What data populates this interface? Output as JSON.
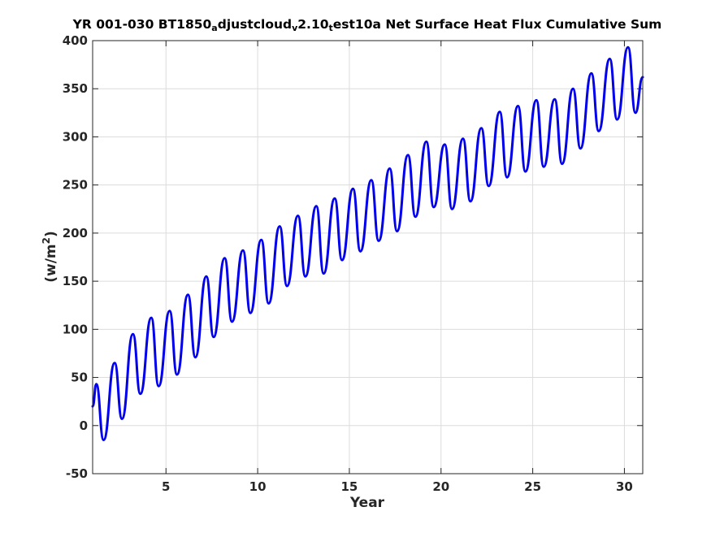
{
  "chart_data": {
    "type": "line",
    "title": {
      "parts": [
        {
          "text": "YR 001-030 BT1850",
          "sub": false
        },
        {
          "text": "a",
          "sub": true
        },
        {
          "text": "djustcloud",
          "sub": false
        },
        {
          "text": "v",
          "sub": true
        },
        {
          "text": "2.10",
          "sub": false
        },
        {
          "text": "t",
          "sub": true
        },
        {
          "text": "est10a Net Surface Heat Flux  Cumulative Sum",
          "sub": false
        }
      ]
    },
    "xlabel": "Year",
    "ylabel": {
      "base": "(w/m",
      "sup": "2",
      "close": ")"
    },
    "xlim": [
      1,
      31
    ],
    "ylim": [
      -50,
      400
    ],
    "xticks": [
      5,
      10,
      15,
      20,
      25,
      30
    ],
    "yticks": [
      -50,
      0,
      50,
      100,
      150,
      200,
      250,
      300,
      350,
      400
    ],
    "grid": true,
    "series_color": "#0000ee",
    "series": [
      {
        "x": [
          1.0,
          1.2,
          1.6,
          2.2,
          2.6,
          3.2,
          3.6,
          4.2,
          4.6,
          5.2,
          5.6,
          6.2,
          6.6,
          7.2,
          7.6,
          8.2,
          8.6,
          9.2,
          9.6,
          10.2,
          10.6,
          11.2,
          11.6,
          12.2,
          12.6,
          13.2,
          13.6,
          14.2,
          14.6,
          15.2,
          15.6,
          16.2,
          16.6,
          17.2,
          17.6,
          18.2,
          18.6,
          19.2,
          19.6,
          20.2,
          20.6,
          21.2,
          21.6,
          22.2,
          22.6,
          23.2,
          23.6,
          24.2,
          24.6,
          25.2,
          25.6,
          26.2,
          26.6,
          27.2,
          27.6,
          28.2,
          28.6,
          29.2,
          29.6,
          30.2,
          30.6,
          31.0
        ],
        "y": [
          20,
          43,
          -15,
          65,
          7,
          95,
          33,
          112,
          41,
          119,
          53,
          136,
          71,
          155,
          92,
          174,
          108,
          182,
          117,
          193,
          127,
          207,
          145,
          218,
          155,
          228,
          158,
          236,
          172,
          246,
          181,
          255,
          192,
          267,
          202,
          281,
          217,
          295,
          227,
          292,
          225,
          298,
          233,
          309,
          249,
          326,
          258,
          332,
          264,
          338,
          269,
          339,
          272,
          350,
          288,
          366,
          306,
          381,
          318,
          393,
          325,
          362
        ]
      }
    ]
  }
}
